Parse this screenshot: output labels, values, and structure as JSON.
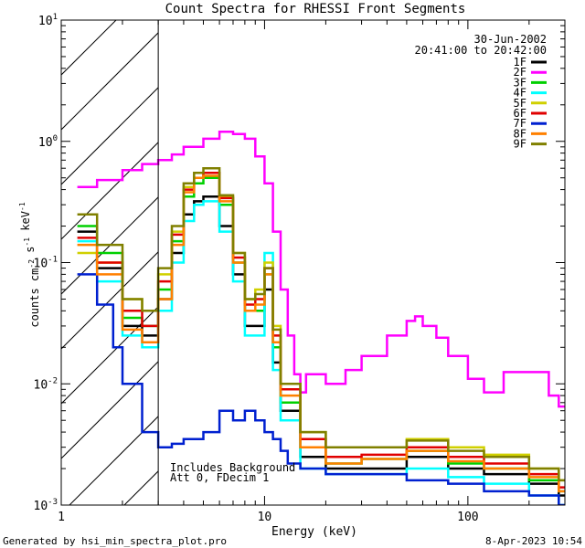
{
  "chart_data": {
    "type": "line",
    "title": "Count Spectra for RHESSI Front Segments",
    "xlabel": "Energy (keV)",
    "ylabel": "counts cm-2 s-1 keV-1",
    "x_scale": "log",
    "y_scale": "log",
    "xlim": [
      1,
      300
    ],
    "ylim": [
      0.001,
      10
    ],
    "x_ticks": [
      {
        "value": 1,
        "label": "1"
      },
      {
        "value": 10,
        "label": "10"
      },
      {
        "value": 100,
        "label": "100"
      }
    ],
    "y_ticks": [
      {
        "value": 0.001,
        "base": "10",
        "exp": "-3"
      },
      {
        "value": 0.01,
        "base": "10",
        "exp": "-2"
      },
      {
        "value": 0.1,
        "base": "10",
        "exp": "-1"
      },
      {
        "value": 1,
        "base": "10",
        "exp": "0"
      },
      {
        "value": 10,
        "base": "10",
        "exp": "1"
      }
    ],
    "legend_header": [
      "30-Jun-2002",
      "20:41:00 to 20:42:00"
    ],
    "hatched_region": {
      "x_from": 1,
      "x_to": 3
    },
    "annotation": [
      "Includes Background",
      "Att 0, FDecim 1"
    ],
    "series": [
      {
        "name": "1F",
        "color": "#000000",
        "x": [
          1.2,
          1.5,
          2,
          2.5,
          3,
          3.5,
          4,
          4.5,
          5,
          6,
          7,
          8,
          9,
          10,
          11,
          12,
          15,
          20,
          30,
          50,
          80,
          120,
          200,
          280
        ],
        "values": [
          0.18,
          0.09,
          0.03,
          0.025,
          0.05,
          0.12,
          0.25,
          0.32,
          0.35,
          0.2,
          0.08,
          0.03,
          0.03,
          0.06,
          0.015,
          0.006,
          0.0025,
          0.002,
          0.002,
          0.0025,
          0.002,
          0.0018,
          0.0015,
          0.0012
        ]
      },
      {
        "name": "2F",
        "color": "#ff00ff",
        "x": [
          1.2,
          1.5,
          2,
          2.5,
          3,
          3.5,
          4,
          5,
          6,
          7,
          8,
          9,
          10,
          11,
          12,
          13,
          14,
          15,
          16,
          18,
          20,
          25,
          30,
          40,
          50,
          55,
          60,
          70,
          80,
          100,
          120,
          150,
          200,
          250,
          280
        ],
        "values": [
          0.42,
          0.48,
          0.58,
          0.65,
          0.7,
          0.78,
          0.9,
          1.05,
          1.2,
          1.15,
          1.05,
          0.75,
          0.45,
          0.18,
          0.06,
          0.025,
          0.012,
          0.0085,
          0.012,
          0.012,
          0.01,
          0.013,
          0.017,
          0.025,
          0.033,
          0.036,
          0.03,
          0.024,
          0.017,
          0.011,
          0.0085,
          0.0125,
          0.0125,
          0.008,
          0.0065
        ]
      },
      {
        "name": "3F",
        "color": "#00d000",
        "x": [
          1.2,
          1.5,
          2,
          2.5,
          3,
          3.5,
          4,
          4.5,
          5,
          6,
          7,
          8,
          9,
          10,
          11,
          12,
          15,
          20,
          30,
          50,
          80,
          120,
          200,
          280
        ],
        "values": [
          0.2,
          0.12,
          0.035,
          0.03,
          0.06,
          0.15,
          0.35,
          0.45,
          0.5,
          0.3,
          0.1,
          0.04,
          0.04,
          0.08,
          0.02,
          0.007,
          0.003,
          0.0022,
          0.0024,
          0.0028,
          0.0022,
          0.002,
          0.0016,
          0.0013
        ]
      },
      {
        "name": "4F",
        "color": "#00ffff",
        "x": [
          1.2,
          1.5,
          2,
          2.5,
          3,
          3.5,
          4,
          4.5,
          5,
          6,
          7,
          8,
          9,
          10,
          11,
          12,
          15,
          20,
          30,
          50,
          80,
          120,
          200,
          280
        ],
        "values": [
          0.15,
          0.07,
          0.025,
          0.02,
          0.04,
          0.1,
          0.22,
          0.3,
          0.32,
          0.18,
          0.07,
          0.025,
          0.025,
          0.12,
          0.013,
          0.005,
          0.002,
          0.0018,
          0.0018,
          0.002,
          0.0017,
          0.0015,
          0.0012,
          0.001
        ]
      },
      {
        "name": "5F",
        "color": "#d0d000",
        "x": [
          1.2,
          1.5,
          2,
          2.5,
          3,
          3.5,
          4,
          4.5,
          5,
          6,
          7,
          8,
          9,
          10,
          11,
          12,
          15,
          20,
          30,
          50,
          80,
          120,
          200,
          280
        ],
        "values": [
          0.12,
          0.1,
          0.05,
          0.04,
          0.08,
          0.18,
          0.42,
          0.5,
          0.55,
          0.35,
          0.12,
          0.05,
          0.06,
          0.1,
          0.03,
          0.01,
          0.004,
          0.003,
          0.003,
          0.0035,
          0.003,
          0.0026,
          0.002,
          0.0016
        ]
      },
      {
        "name": "6F",
        "color": "#e00000",
        "x": [
          1.2,
          1.5,
          2,
          2.5,
          3,
          3.5,
          4,
          4.5,
          5,
          6,
          7,
          8,
          9,
          10,
          11,
          12,
          15,
          20,
          30,
          50,
          80,
          120,
          200,
          280
        ],
        "values": [
          0.16,
          0.1,
          0.04,
          0.03,
          0.07,
          0.17,
          0.4,
          0.5,
          0.55,
          0.34,
          0.11,
          0.045,
          0.05,
          0.09,
          0.025,
          0.009,
          0.0035,
          0.0025,
          0.0026,
          0.003,
          0.0025,
          0.0022,
          0.0018,
          0.0014
        ]
      },
      {
        "name": "7F",
        "color": "#0020d0",
        "x": [
          1.2,
          1.5,
          1.8,
          2,
          2.5,
          3,
          3.5,
          4,
          5,
          6,
          7,
          8,
          9,
          10,
          11,
          12,
          13,
          15,
          20,
          30,
          50,
          80,
          120,
          200,
          280
        ],
        "values": [
          0.08,
          0.045,
          0.02,
          0.01,
          0.004,
          0.003,
          0.0032,
          0.0035,
          0.004,
          0.006,
          0.005,
          0.006,
          0.005,
          0.004,
          0.0035,
          0.0028,
          0.0022,
          0.002,
          0.0018,
          0.0018,
          0.0016,
          0.0015,
          0.0013,
          0.0012,
          0.001
        ]
      },
      {
        "name": "8F",
        "color": "#ff8000",
        "x": [
          1.2,
          1.5,
          2,
          2.5,
          3,
          3.5,
          4,
          4.5,
          5,
          6,
          7,
          8,
          9,
          10,
          11,
          12,
          15,
          20,
          30,
          50,
          80,
          120,
          200,
          280
        ],
        "values": [
          0.14,
          0.08,
          0.028,
          0.022,
          0.05,
          0.14,
          0.38,
          0.5,
          0.52,
          0.32,
          0.1,
          0.04,
          0.045,
          0.08,
          0.022,
          0.008,
          0.003,
          0.0022,
          0.0024,
          0.0028,
          0.0023,
          0.002,
          0.0017,
          0.0013
        ]
      },
      {
        "name": "9F",
        "color": "#808000",
        "x": [
          1.2,
          1.5,
          2,
          2.5,
          3,
          3.5,
          4,
          4.5,
          5,
          6,
          7,
          8,
          9,
          10,
          11,
          12,
          15,
          20,
          30,
          50,
          80,
          120,
          200,
          280
        ],
        "values": [
          0.25,
          0.14,
          0.05,
          0.04,
          0.09,
          0.2,
          0.45,
          0.55,
          0.6,
          0.36,
          0.12,
          0.05,
          0.055,
          0.09,
          0.028,
          0.01,
          0.004,
          0.003,
          0.003,
          0.0034,
          0.0028,
          0.0025,
          0.002,
          0.0016
        ]
      }
    ]
  },
  "footer": {
    "left": "Generated by hsi_min_spectra_plot.pro",
    "right": "8-Apr-2023 10:54"
  }
}
